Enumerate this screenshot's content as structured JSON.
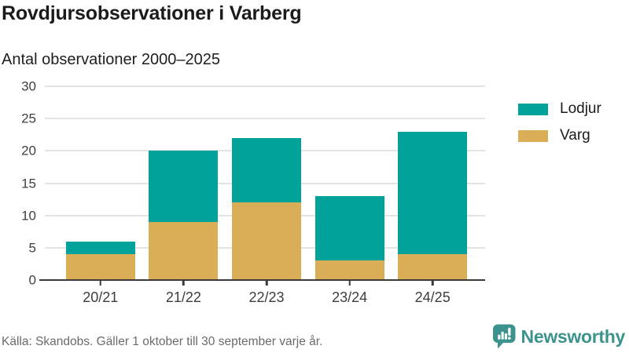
{
  "header": {
    "title": "Rovdjursobservationer i Varberg",
    "subtitle": "Antal observationer 2000–2025"
  },
  "chart_data": {
    "type": "bar",
    "stacked": true,
    "title": "Rovdjursobservationer i Varberg",
    "subtitle": "Antal observationer 2000–2025",
    "categories": [
      "20/21",
      "21/22",
      "22/23",
      "23/24",
      "24/25"
    ],
    "series": [
      {
        "name": "Varg",
        "color": "#d9ae57",
        "values": [
          4,
          9,
          12,
          3,
          4
        ]
      },
      {
        "name": "Lodjur",
        "color": "#00a29a",
        "values": [
          2,
          11,
          10,
          10,
          19
        ]
      }
    ],
    "totals": [
      6,
      20,
      22,
      13,
      23
    ],
    "xlabel": "",
    "ylabel": "",
    "ylim": [
      0,
      30
    ],
    "yticks": [
      0,
      5,
      10,
      15,
      20,
      25,
      30
    ],
    "grid": true,
    "legend_position": "right",
    "legend_order": [
      "Lodjur",
      "Varg"
    ]
  },
  "footer": {
    "source": "Källa: Skandobs. Gäller 1 oktober till 30 september varje år.",
    "brand": "Newsworthy"
  },
  "colors": {
    "lodjur": "#00a29a",
    "varg": "#d9ae57",
    "brand_teal": "#3c938d",
    "text_dark": "#1b1b1b",
    "text_gray": "#6b6b6b",
    "gridline": "#e4e4e4",
    "axis": "#3a3a3a"
  }
}
